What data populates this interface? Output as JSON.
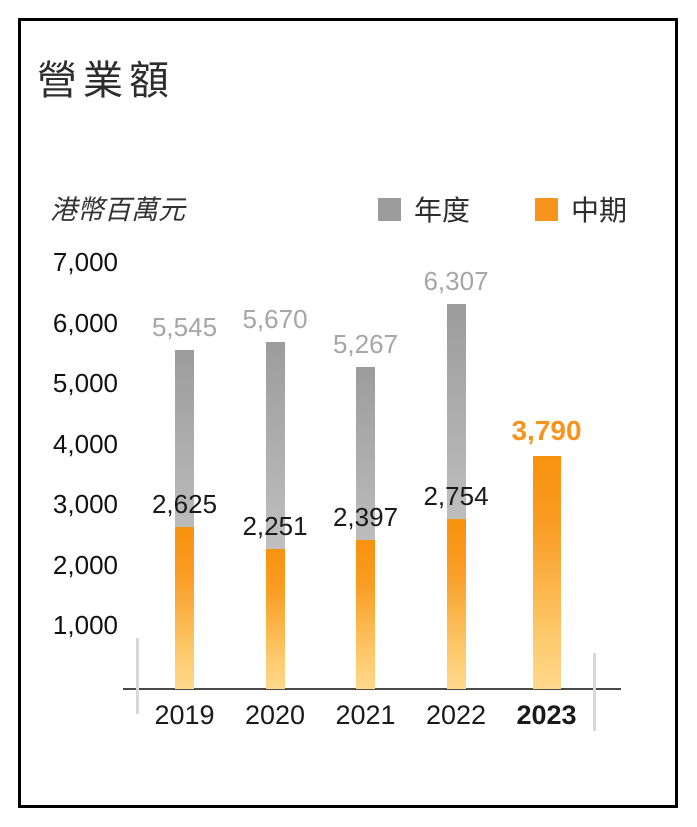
{
  "header": {
    "title": "營業額"
  },
  "chart_data": {
    "type": "bar",
    "title": "營業額",
    "unit_label": "港幣百萬元",
    "categories": [
      "2019",
      "2020",
      "2021",
      "2022",
      "2023"
    ],
    "series": [
      {
        "name": "年度",
        "color": "#9b9b9b",
        "values": [
          5545,
          5670,
          5267,
          6307,
          null
        ]
      },
      {
        "name": "中期",
        "color": "#f7941e",
        "values": [
          2625,
          2251,
          2397,
          2754,
          3790
        ]
      }
    ],
    "value_labels": {
      "annual": [
        "5,545",
        "5,670",
        "5,267",
        "6,307",
        null
      ],
      "interim": [
        "2,625",
        "2,251",
        "2,397",
        "2,754",
        "3,790"
      ]
    },
    "highlight_category": "2023",
    "ylim": [
      0,
      7000
    ],
    "yticks": [
      "1,000",
      "2,000",
      "3,000",
      "4,000",
      "5,000",
      "6,000",
      "7,000"
    ],
    "ytick_values": [
      1000,
      2000,
      3000,
      4000,
      5000,
      6000,
      7000
    ],
    "grid": false,
    "legend_position": "top-right",
    "colors": {
      "annual_bar_top": "#9c9c9c",
      "annual_bar_bottom": "#d7d7d7",
      "interim_bar_top": "#f8920d",
      "interim_bar_bottom": "#ffd98c",
      "annual_value_label": "#a6a6a6",
      "interim_value_label": "#1a1a1a",
      "highlight_value_label": "#f7941e",
      "axis_line": "#4a4a4a"
    }
  }
}
